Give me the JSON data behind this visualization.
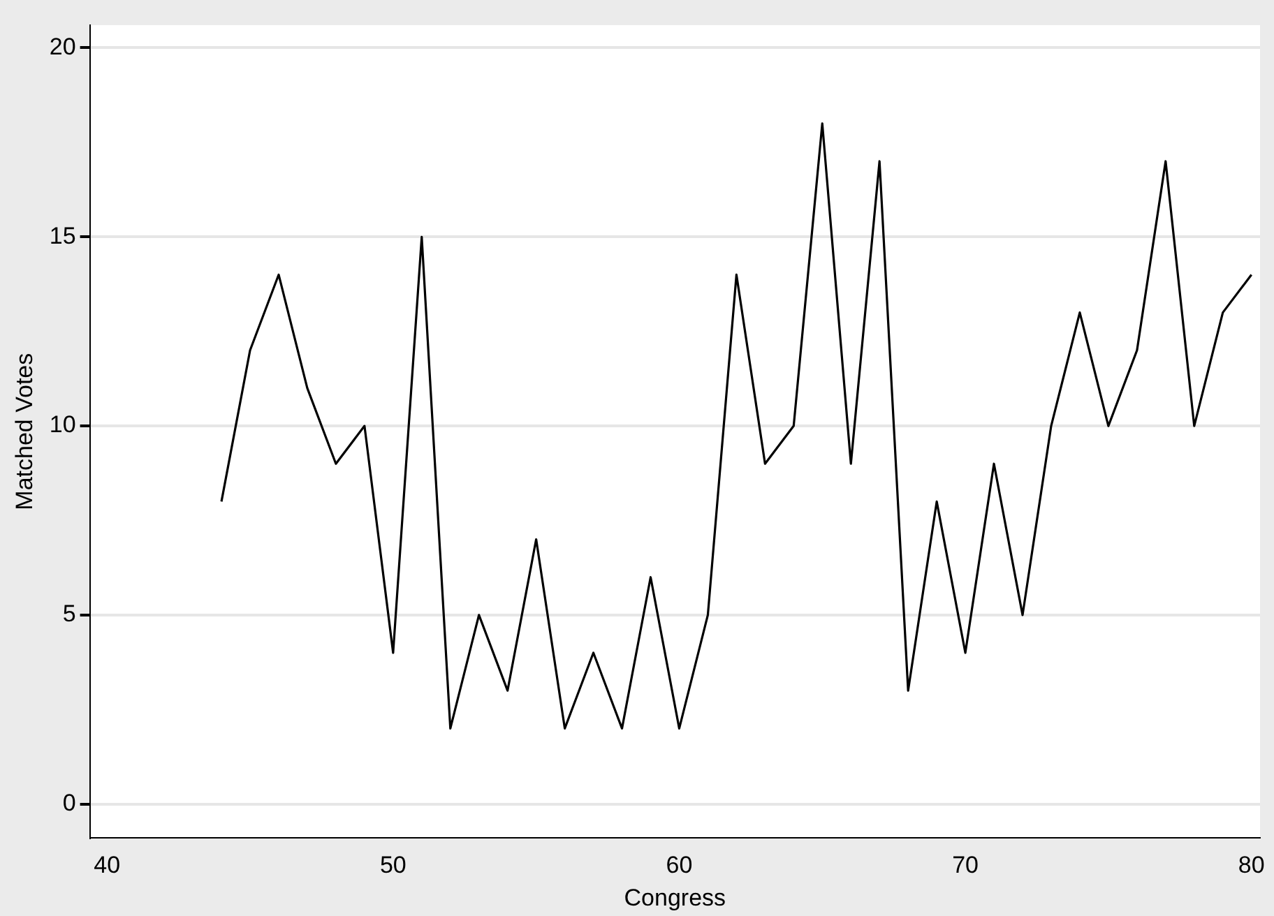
{
  "chart_data": {
    "type": "line",
    "xlabel": "Congress",
    "ylabel": "Matched Votes",
    "x": [
      44,
      45,
      46,
      47,
      48,
      49,
      50,
      51,
      52,
      53,
      54,
      55,
      56,
      57,
      58,
      59,
      60,
      61,
      62,
      63,
      64,
      65,
      66,
      67,
      68,
      69,
      70,
      71,
      72,
      73,
      74,
      75,
      76,
      77,
      78,
      79,
      80
    ],
    "series": [
      {
        "color": "#000000",
        "values": [
          8,
          12,
          14,
          11,
          9,
          10,
          4,
          15,
          2,
          5,
          3,
          7,
          2,
          4,
          2,
          6,
          2,
          5,
          14,
          9,
          10,
          18,
          9,
          17,
          3,
          8,
          4,
          9,
          5,
          10,
          13,
          10,
          12,
          17,
          10,
          13,
          14
        ]
      }
    ],
    "xlim": [
      39.4,
      80.3
    ],
    "ylim": [
      -0.9,
      20.6
    ],
    "xticks": [
      40,
      50,
      60,
      70,
      80
    ],
    "yticks": [
      0,
      5,
      10,
      15,
      20
    ],
    "grid": "y",
    "legend": false,
    "marker": "none",
    "line_style": "solid"
  }
}
